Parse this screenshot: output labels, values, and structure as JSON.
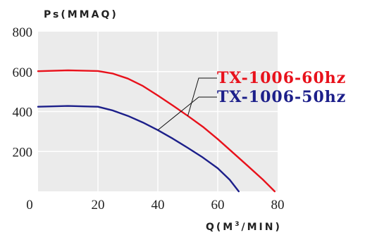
{
  "chart_data": {
    "type": "line",
    "ylabel": "Ps(MMAQ)",
    "xlabel_main": "Q(M",
    "xlabel_sup": "3",
    "xlabel_tail": "/MIN)",
    "xlim": [
      0,
      80
    ],
    "ylim": [
      0,
      800
    ],
    "x_ticks": [
      "0",
      "20",
      "40",
      "60",
      "80"
    ],
    "y_ticks": [
      "200",
      "400",
      "600",
      "800"
    ],
    "grid": true,
    "legend_position": "right",
    "series": [
      {
        "name": "TX-1006-60hz",
        "color": "#e8111b",
        "points": [
          [
            0,
            602
          ],
          [
            10,
            606
          ],
          [
            20,
            603
          ],
          [
            25,
            590
          ],
          [
            30,
            565
          ],
          [
            35,
            528
          ],
          [
            40,
            480
          ],
          [
            45,
            430
          ],
          [
            50,
            378
          ],
          [
            55,
            324
          ],
          [
            60,
            262
          ],
          [
            65,
            195
          ],
          [
            70,
            128
          ],
          [
            75,
            60
          ],
          [
            79,
            0
          ]
        ]
      },
      {
        "name": "TX-1006-50hz",
        "color": "#1c1f8a",
        "points": [
          [
            0,
            424
          ],
          [
            10,
            428
          ],
          [
            20,
            424
          ],
          [
            25,
            405
          ],
          [
            30,
            378
          ],
          [
            35,
            345
          ],
          [
            40,
            307
          ],
          [
            45,
            264
          ],
          [
            50,
            218
          ],
          [
            55,
            170
          ],
          [
            60,
            116
          ],
          [
            64,
            58
          ],
          [
            67,
            0
          ]
        ]
      }
    ]
  }
}
